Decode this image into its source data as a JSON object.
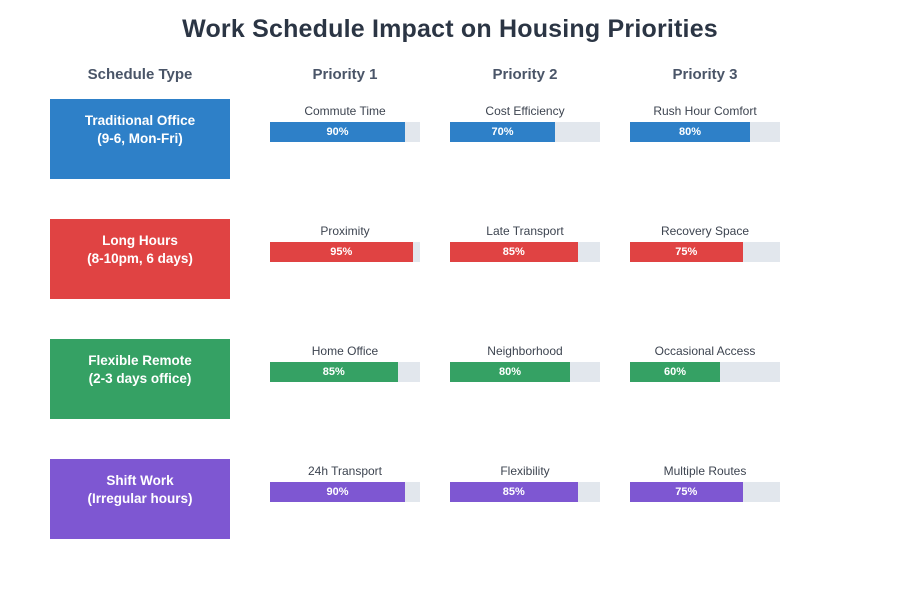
{
  "title": "Work Schedule Impact on Housing Priorities",
  "columns": [
    "Schedule Type",
    "Priority 1",
    "Priority 2",
    "Priority 3"
  ],
  "rows": [
    {
      "type_line1": "Traditional Office",
      "type_line2": "(9-6, Mon-Fri)",
      "color": "#2e80c8",
      "priorities": [
        {
          "label": "Commute Time",
          "value": 90,
          "value_label": "90%"
        },
        {
          "label": "Cost Efficiency",
          "value": 70,
          "value_label": "70%"
        },
        {
          "label": "Rush Hour Comfort",
          "value": 80,
          "value_label": "80%"
        }
      ]
    },
    {
      "type_line1": "Long Hours",
      "type_line2": "(8-10pm, 6 days)",
      "color": "#e04343",
      "priorities": [
        {
          "label": "Proximity",
          "value": 95,
          "value_label": "95%"
        },
        {
          "label": "Late Transport",
          "value": 85,
          "value_label": "85%"
        },
        {
          "label": "Recovery Space",
          "value": 75,
          "value_label": "75%"
        }
      ]
    },
    {
      "type_line1": "Flexible Remote",
      "type_line2": "(2-3 days office)",
      "color": "#35a164",
      "priorities": [
        {
          "label": "Home Office",
          "value": 85,
          "value_label": "85%"
        },
        {
          "label": "Neighborhood",
          "value": 80,
          "value_label": "80%"
        },
        {
          "label": "Occasional Access",
          "value": 60,
          "value_label": "60%"
        }
      ]
    },
    {
      "type_line1": "Shift Work",
      "type_line2": "(Irregular hours)",
      "color": "#7e57d2",
      "priorities": [
        {
          "label": "24h Transport",
          "value": 90,
          "value_label": "90%"
        },
        {
          "label": "Flexibility",
          "value": 85,
          "value_label": "85%"
        },
        {
          "label": "Multiple Routes",
          "value": 75,
          "value_label": "75%"
        }
      ]
    }
  ],
  "chart_data": {
    "type": "bar",
    "title": "Work Schedule Impact on Housing Priorities",
    "columns": [
      "Schedule Type",
      "Priority 1",
      "Priority 2",
      "Priority 3"
    ],
    "unit": "%",
    "value_range": [
      0,
      100
    ],
    "grid": false,
    "legend": "none",
    "series": [
      {
        "name": "Traditional Office (9-6, Mon-Fri)",
        "color": "#2e80c8",
        "bars": [
          {
            "label": "Commute Time",
            "value": 90
          },
          {
            "label": "Cost Efficiency",
            "value": 70
          },
          {
            "label": "Rush Hour Comfort",
            "value": 80
          }
        ]
      },
      {
        "name": "Long Hours (8-10pm, 6 days)",
        "color": "#e04343",
        "bars": [
          {
            "label": "Proximity",
            "value": 95
          },
          {
            "label": "Late Transport",
            "value": 85
          },
          {
            "label": "Recovery Space",
            "value": 75
          }
        ]
      },
      {
        "name": "Flexible Remote (2-3 days office)",
        "color": "#35a164",
        "bars": [
          {
            "label": "Home Office",
            "value": 85
          },
          {
            "label": "Neighborhood",
            "value": 80
          },
          {
            "label": "Occasional Access",
            "value": 60
          }
        ]
      },
      {
        "name": "Shift Work (Irregular hours)",
        "color": "#7e57d2",
        "bars": [
          {
            "label": "24h Transport",
            "value": 90
          },
          {
            "label": "Flexibility",
            "value": 85
          },
          {
            "label": "Multiple Routes",
            "value": 75
          }
        ]
      }
    ]
  }
}
